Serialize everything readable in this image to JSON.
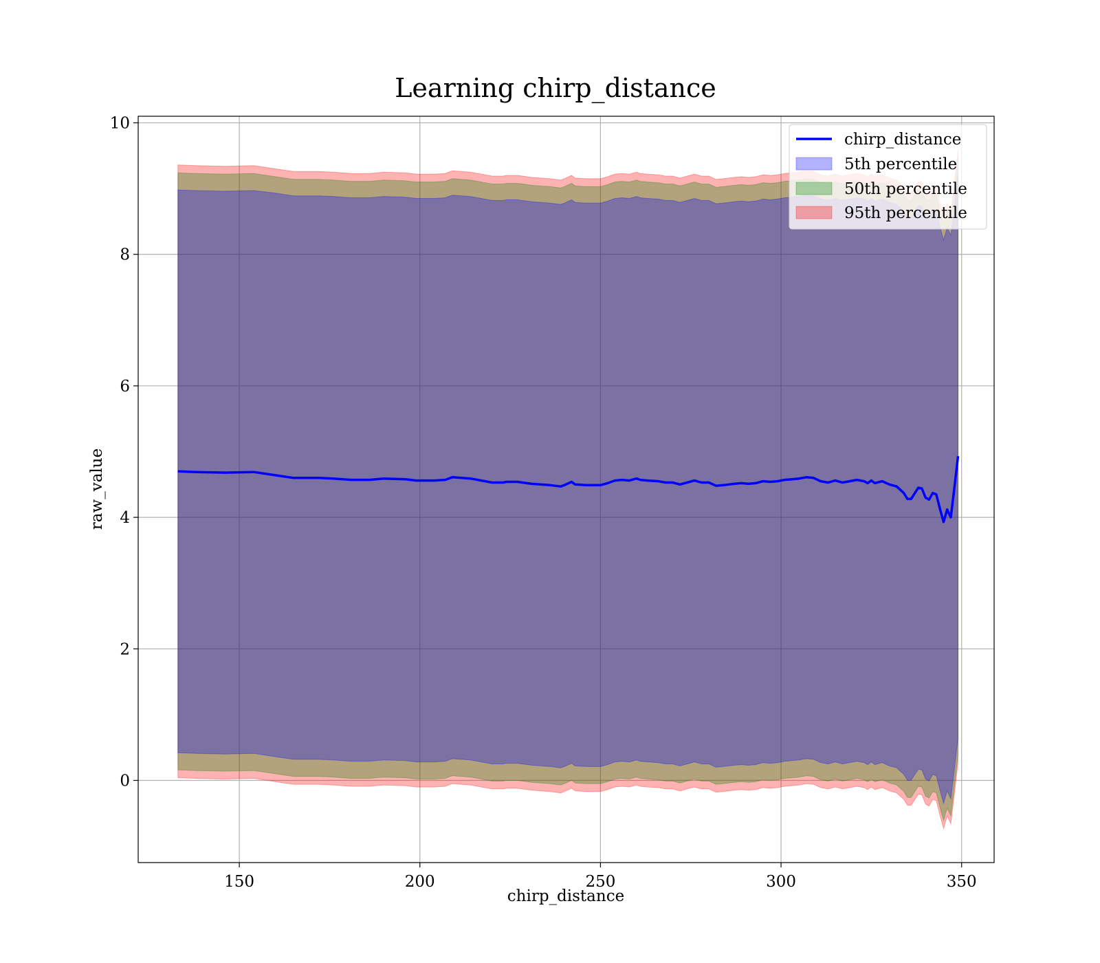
{
  "chart_data": {
    "type": "area",
    "title": "Learning chirp_distance",
    "xlabel": "chirp_distance",
    "ylabel": "raw_value",
    "xlim": [
      122,
      359
    ],
    "ylim": [
      -1.25,
      10.1
    ],
    "xticks": [
      150,
      200,
      250,
      300,
      350
    ],
    "yticks": [
      0,
      2,
      4,
      6,
      8,
      10
    ],
    "grid": true,
    "legend_position": "top-right",
    "colors": {
      "line": "#0000ff",
      "p5": "#0000ff",
      "p50": "#008000",
      "p95": "#ff0000"
    },
    "x": [
      133,
      138,
      146,
      154,
      160,
      165,
      172,
      176,
      181,
      186,
      190,
      196,
      199,
      204,
      207,
      209,
      214,
      217,
      220,
      223,
      224,
      227,
      231,
      236,
      239,
      240,
      242,
      243,
      246,
      248,
      250,
      252,
      254,
      256,
      258,
      260,
      261,
      263,
      266,
      268,
      270,
      272,
      274,
      276,
      278,
      280,
      282,
      284,
      287,
      289,
      291,
      293,
      295,
      297,
      299,
      301,
      303,
      305,
      307,
      309,
      311,
      313,
      315,
      317,
      319,
      321,
      323,
      324,
      325,
      326,
      328,
      330,
      332,
      334,
      335,
      336,
      338,
      339,
      340,
      341,
      342,
      343,
      344,
      345,
      346,
      347,
      348,
      349
    ],
    "series": [
      {
        "name": "chirp_distance",
        "kind": "line",
        "values": [
          4.7,
          4.69,
          4.68,
          4.69,
          4.64,
          4.6,
          4.6,
          4.59,
          4.57,
          4.57,
          4.59,
          4.58,
          4.56,
          4.56,
          4.57,
          4.61,
          4.59,
          4.56,
          4.53,
          4.53,
          4.54,
          4.54,
          4.51,
          4.49,
          4.47,
          4.49,
          4.54,
          4.5,
          4.49,
          4.49,
          4.49,
          4.52,
          4.56,
          4.57,
          4.56,
          4.59,
          4.57,
          4.56,
          4.55,
          4.53,
          4.53,
          4.5,
          4.53,
          4.56,
          4.53,
          4.53,
          4.48,
          4.49,
          4.51,
          4.52,
          4.51,
          4.52,
          4.55,
          4.54,
          4.55,
          4.57,
          4.58,
          4.59,
          4.61,
          4.6,
          4.55,
          4.53,
          4.56,
          4.53,
          4.55,
          4.57,
          4.55,
          4.52,
          4.56,
          4.52,
          4.55,
          4.5,
          4.47,
          4.37,
          4.28,
          4.28,
          4.45,
          4.44,
          4.3,
          4.27,
          4.37,
          4.35,
          4.13,
          3.93,
          4.12,
          4.0,
          4.45,
          4.93
        ]
      },
      {
        "name": "5th percentile",
        "kind": "band",
        "upper": [
          8.98,
          8.97,
          8.96,
          8.97,
          8.93,
          8.89,
          8.89,
          8.88,
          8.86,
          8.86,
          8.88,
          8.87,
          8.85,
          8.85,
          8.86,
          8.9,
          8.88,
          8.85,
          8.82,
          8.82,
          8.83,
          8.83,
          8.8,
          8.78,
          8.76,
          8.78,
          8.83,
          8.79,
          8.78,
          8.78,
          8.78,
          8.81,
          8.85,
          8.86,
          8.85,
          8.88,
          8.86,
          8.85,
          8.84,
          8.82,
          8.82,
          8.79,
          8.82,
          8.85,
          8.82,
          8.82,
          8.77,
          8.78,
          8.8,
          8.81,
          8.8,
          8.81,
          8.84,
          8.83,
          8.84,
          8.86,
          8.87,
          8.88,
          8.9,
          8.89,
          8.84,
          8.82,
          8.85,
          8.82,
          8.84,
          8.86,
          8.84,
          8.81,
          8.85,
          8.81,
          8.84,
          8.79,
          8.76,
          8.66,
          8.57,
          8.57,
          8.74,
          8.73,
          8.59,
          8.56,
          8.66,
          8.64,
          8.42,
          8.22,
          8.41,
          8.29,
          8.74,
          9.22
        ],
        "lower": [
          0.42,
          0.41,
          0.4,
          0.41,
          0.36,
          0.32,
          0.32,
          0.31,
          0.29,
          0.29,
          0.31,
          0.3,
          0.28,
          0.28,
          0.29,
          0.33,
          0.31,
          0.28,
          0.25,
          0.25,
          0.26,
          0.26,
          0.23,
          0.21,
          0.19,
          0.21,
          0.26,
          0.22,
          0.21,
          0.21,
          0.21,
          0.24,
          0.28,
          0.29,
          0.28,
          0.31,
          0.29,
          0.28,
          0.27,
          0.25,
          0.25,
          0.22,
          0.25,
          0.28,
          0.25,
          0.25,
          0.2,
          0.21,
          0.23,
          0.24,
          0.23,
          0.24,
          0.27,
          0.26,
          0.27,
          0.29,
          0.3,
          0.31,
          0.33,
          0.32,
          0.27,
          0.25,
          0.28,
          0.25,
          0.27,
          0.29,
          0.27,
          0.24,
          0.28,
          0.24,
          0.27,
          0.22,
          0.19,
          0.09,
          0.0,
          0.0,
          0.17,
          0.16,
          0.02,
          -0.01,
          0.09,
          0.07,
          -0.15,
          -0.35,
          -0.16,
          -0.28,
          0.17,
          0.65
        ]
      },
      {
        "name": "50th percentile",
        "kind": "band",
        "upper": [
          9.24,
          9.23,
          9.22,
          9.23,
          9.18,
          9.14,
          9.14,
          9.13,
          9.11,
          9.11,
          9.13,
          9.12,
          9.1,
          9.1,
          9.11,
          9.15,
          9.13,
          9.1,
          9.07,
          9.07,
          9.08,
          9.08,
          9.05,
          9.03,
          9.01,
          9.03,
          9.08,
          9.04,
          9.03,
          9.03,
          9.03,
          9.06,
          9.1,
          9.11,
          9.1,
          9.13,
          9.11,
          9.1,
          9.09,
          9.07,
          9.07,
          9.04,
          9.07,
          9.1,
          9.07,
          9.07,
          9.02,
          9.03,
          9.05,
          9.06,
          9.05,
          9.06,
          9.09,
          9.08,
          9.09,
          9.11,
          9.12,
          9.13,
          9.15,
          9.14,
          9.09,
          9.07,
          9.1,
          9.07,
          9.09,
          9.11,
          9.09,
          9.06,
          9.1,
          9.06,
          9.09,
          9.04,
          9.01,
          8.91,
          8.82,
          8.82,
          8.99,
          8.98,
          8.84,
          8.81,
          8.91,
          8.89,
          8.67,
          8.47,
          8.66,
          8.54,
          8.99,
          9.47
        ],
        "lower": [
          0.16,
          0.15,
          0.14,
          0.15,
          0.1,
          0.06,
          0.06,
          0.05,
          0.03,
          0.03,
          0.05,
          0.04,
          0.02,
          0.02,
          0.03,
          0.07,
          0.05,
          0.02,
          -0.01,
          -0.01,
          0.0,
          0.0,
          -0.03,
          -0.05,
          -0.07,
          -0.05,
          0.0,
          -0.04,
          -0.05,
          -0.05,
          -0.05,
          -0.02,
          0.02,
          0.03,
          0.02,
          0.05,
          0.03,
          0.02,
          0.01,
          -0.01,
          -0.01,
          -0.04,
          -0.01,
          0.02,
          -0.01,
          -0.01,
          -0.06,
          -0.05,
          -0.03,
          -0.02,
          -0.03,
          -0.02,
          0.01,
          0.0,
          0.01,
          0.03,
          0.04,
          0.05,
          0.07,
          0.06,
          0.01,
          -0.01,
          0.02,
          -0.01,
          0.01,
          0.03,
          0.01,
          -0.02,
          0.02,
          -0.02,
          0.01,
          -0.04,
          -0.07,
          -0.17,
          -0.26,
          -0.26,
          -0.09,
          -0.1,
          -0.24,
          -0.27,
          -0.17,
          -0.19,
          -0.41,
          -0.61,
          -0.42,
          -0.54,
          -0.09,
          0.39
        ]
      },
      {
        "name": "95th percentile",
        "kind": "band",
        "upper": [
          9.36,
          9.35,
          9.34,
          9.35,
          9.3,
          9.26,
          9.26,
          9.25,
          9.23,
          9.23,
          9.25,
          9.24,
          9.22,
          9.22,
          9.23,
          9.27,
          9.25,
          9.22,
          9.19,
          9.19,
          9.2,
          9.2,
          9.17,
          9.15,
          9.13,
          9.15,
          9.2,
          9.16,
          9.15,
          9.15,
          9.15,
          9.18,
          9.22,
          9.23,
          9.22,
          9.25,
          9.23,
          9.22,
          9.21,
          9.19,
          9.19,
          9.16,
          9.19,
          9.22,
          9.19,
          9.19,
          9.14,
          9.15,
          9.17,
          9.18,
          9.17,
          9.18,
          9.21,
          9.2,
          9.21,
          9.23,
          9.24,
          9.25,
          9.27,
          9.26,
          9.21,
          9.19,
          9.22,
          9.19,
          9.21,
          9.23,
          9.21,
          9.18,
          9.22,
          9.18,
          9.21,
          9.16,
          9.13,
          9.03,
          8.94,
          8.94,
          9.11,
          9.1,
          8.96,
          8.93,
          9.03,
          9.01,
          8.79,
          8.59,
          8.78,
          8.66,
          9.11,
          9.59
        ],
        "lower": [
          0.04,
          0.03,
          0.02,
          0.03,
          -0.02,
          -0.06,
          -0.06,
          -0.07,
          -0.09,
          -0.09,
          -0.07,
          -0.08,
          -0.1,
          -0.1,
          -0.09,
          -0.05,
          -0.07,
          -0.1,
          -0.13,
          -0.13,
          -0.12,
          -0.12,
          -0.15,
          -0.17,
          -0.19,
          -0.17,
          -0.12,
          -0.16,
          -0.17,
          -0.17,
          -0.17,
          -0.14,
          -0.1,
          -0.09,
          -0.1,
          -0.07,
          -0.09,
          -0.1,
          -0.11,
          -0.13,
          -0.13,
          -0.16,
          -0.13,
          -0.1,
          -0.13,
          -0.13,
          -0.18,
          -0.17,
          -0.15,
          -0.14,
          -0.15,
          -0.14,
          -0.11,
          -0.12,
          -0.11,
          -0.09,
          -0.08,
          -0.07,
          -0.05,
          -0.06,
          -0.11,
          -0.13,
          -0.1,
          -0.13,
          -0.11,
          -0.09,
          -0.11,
          -0.14,
          -0.1,
          -0.14,
          -0.11,
          -0.16,
          -0.19,
          -0.29,
          -0.38,
          -0.38,
          -0.21,
          -0.22,
          -0.36,
          -0.39,
          -0.29,
          -0.31,
          -0.53,
          -0.73,
          -0.54,
          -0.66,
          -0.21,
          0.27
        ]
      }
    ]
  }
}
